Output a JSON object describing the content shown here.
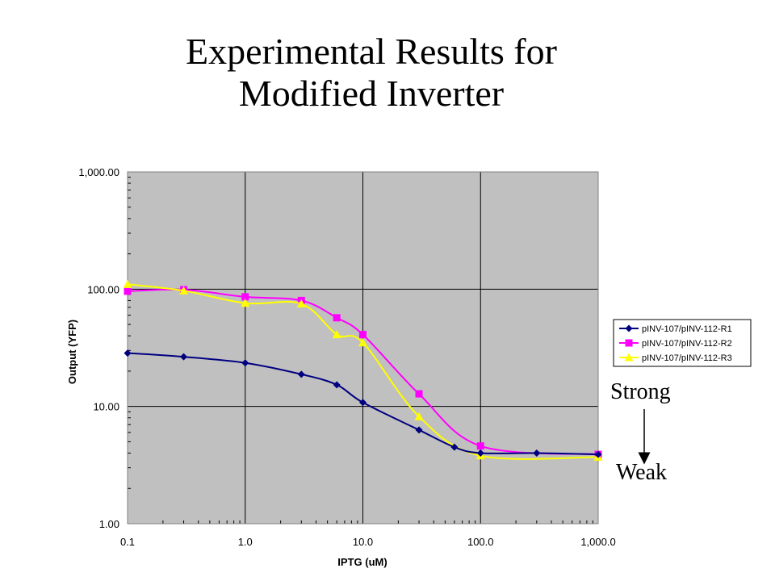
{
  "title": {
    "line1": "Experimental Results for",
    "line2": "Modified Inverter"
  },
  "annotations": {
    "strong": "Strong",
    "weak": "Weak"
  },
  "chart_data": {
    "type": "line",
    "xlabel": "IPTG (uM)",
    "ylabel": "Output (YFP)",
    "xscale": "log",
    "yscale": "log",
    "xlim": [
      0.1,
      1000
    ],
    "ylim": [
      1,
      1000
    ],
    "x_ticks": [
      0.1,
      1,
      10,
      100,
      1000
    ],
    "x_tick_labels": [
      "0.1",
      "1.0",
      "10.0",
      "100.0",
      "1,000.0"
    ],
    "y_ticks": [
      1,
      10,
      100,
      1000
    ],
    "y_tick_labels": [
      "1.00",
      "10.00",
      "100.00",
      "1,000.00"
    ],
    "grid": true,
    "plot_background": "#c0c0c0",
    "legend_position": "right",
    "series": [
      {
        "name": "pINV-107/pINV-112-R1",
        "color": "#000080",
        "marker": "diamond",
        "x": [
          0.1,
          0.3,
          1,
          3,
          6,
          10,
          30,
          60,
          100,
          300,
          1000
        ],
        "y": [
          28.5,
          26.5,
          23.5,
          18.8,
          15.3,
          10.8,
          6.3,
          4.5,
          4.0,
          4.0,
          3.9
        ]
      },
      {
        "name": "pINV-107/pINV-112-R2",
        "color": "#ff00ff",
        "marker": "square",
        "x": [
          0.1,
          0.3,
          1,
          3,
          6,
          10,
          30,
          100,
          1000
        ],
        "y": [
          96,
          99,
          86,
          80,
          57,
          41,
          12.8,
          4.6,
          3.9
        ]
      },
      {
        "name": "pINV-107/pINV-112-R3",
        "color": "#ffff00",
        "marker": "triangle",
        "x": [
          0.1,
          0.3,
          1,
          3,
          6,
          10,
          30,
          100,
          1000
        ],
        "y": [
          110,
          97,
          76,
          75,
          41,
          35,
          8.2,
          3.8,
          3.7
        ]
      }
    ]
  }
}
